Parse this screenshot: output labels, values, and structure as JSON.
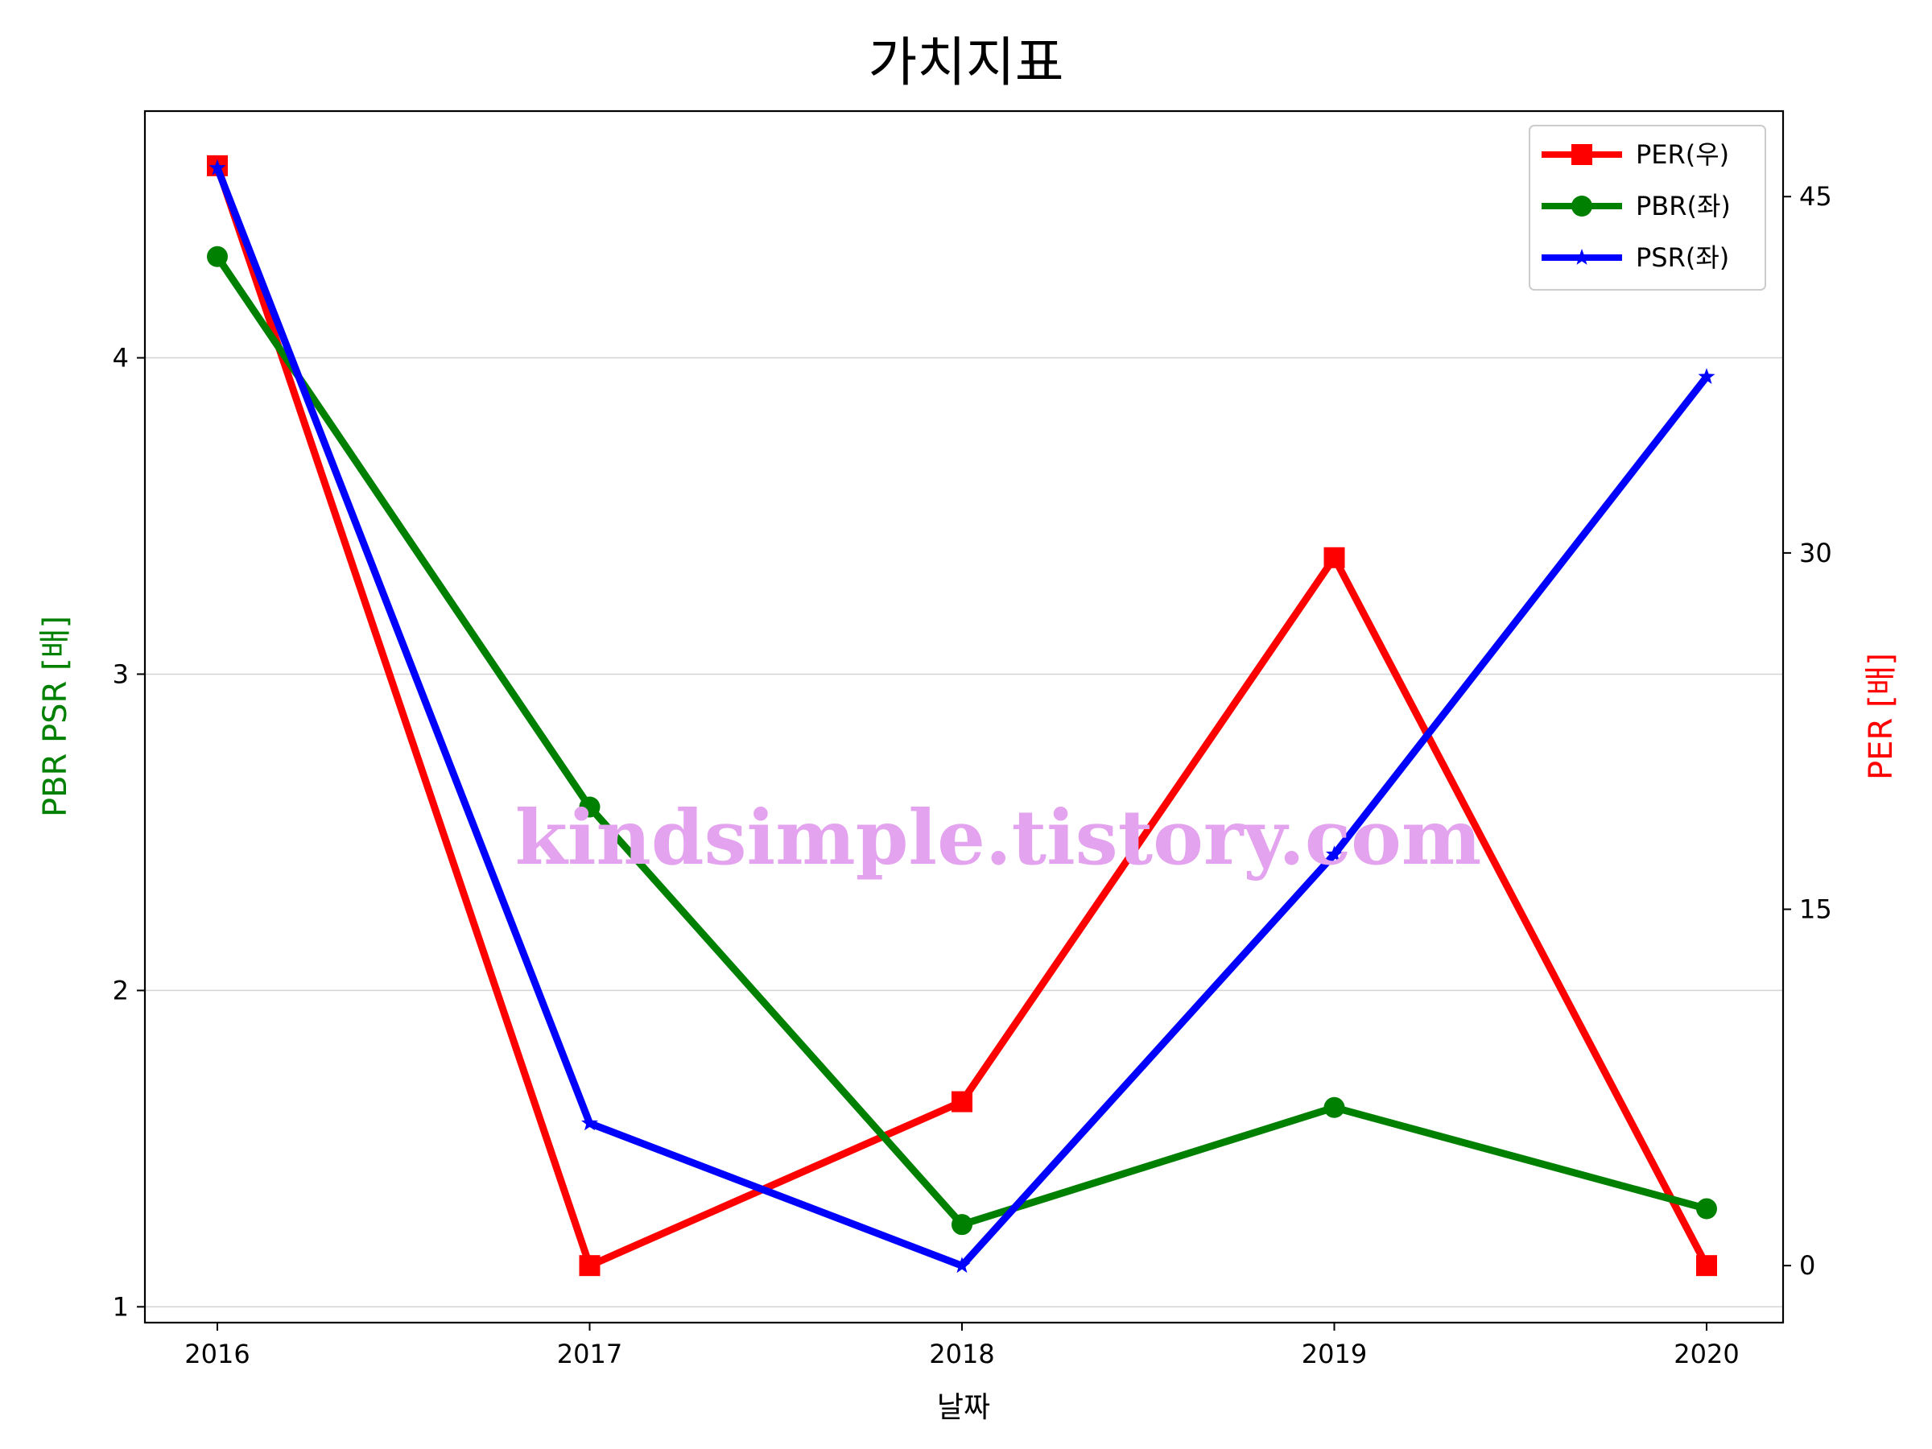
{
  "chart_data": {
    "type": "line",
    "title": "가치지표",
    "xlabel": "날짜",
    "ylabel_left": "PBR PSR [배]",
    "ylabel_right": "PER [배]",
    "categories": [
      "2016",
      "2017",
      "2018",
      "2019",
      "2020"
    ],
    "x_tick_labels": [
      "2016",
      "2017",
      "2018",
      "2019",
      "2020"
    ],
    "left_ylim": [
      0.95,
      4.78
    ],
    "left_yticks": [
      1,
      2,
      3,
      4
    ],
    "left_ytick_labels": [
      "1",
      "2",
      "3",
      "4"
    ],
    "right_ylim": [
      -2.4,
      48.6
    ],
    "right_yticks": [
      0,
      15,
      30,
      45
    ],
    "right_ytick_labels": [
      "0",
      "15",
      "30",
      "45"
    ],
    "grid": "horizontal (left axis)",
    "legend_position": "top-right",
    "series": [
      {
        "name": "PER(우)",
        "axis": "right",
        "marker": "square",
        "color": "#ff0000",
        "values": [
          46.3,
          0,
          6.9,
          29.8,
          0
        ]
      },
      {
        "name": "PBR(좌)",
        "axis": "left",
        "marker": "circle",
        "color": "#008000",
        "values": [
          4.32,
          2.58,
          1.26,
          1.63,
          1.31
        ]
      },
      {
        "name": "PSR(좌)",
        "axis": "left",
        "marker": "star",
        "color": "#0000ff",
        "values": [
          4.6,
          1.58,
          1.13,
          2.43,
          3.94
        ]
      }
    ],
    "colors": {
      "left_label": "#008000",
      "right_label": "#ff0000"
    }
  },
  "watermark": {
    "text": "kindsimple.tistory.com",
    "color": "#e4a3ee"
  }
}
